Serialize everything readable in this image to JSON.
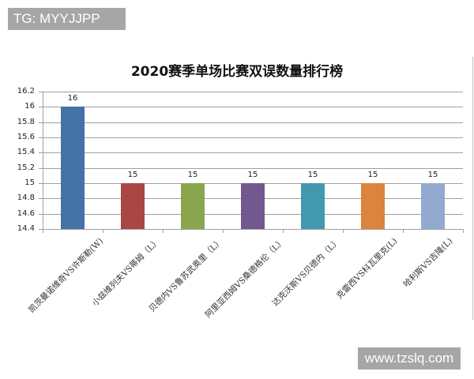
{
  "watermarks": {
    "top": "TG: MYYJJPP",
    "bottom": "www.tzslq.com"
  },
  "chart_data": {
    "type": "bar",
    "title": "2020赛季单场比赛双误数量排行榜",
    "xlabel": "",
    "ylabel": "",
    "ylim": [
      14.4,
      16.2
    ],
    "yticks": [
      "16.2",
      "16",
      "15.8",
      "15.6",
      "15.4",
      "15.2",
      "15",
      "14.8",
      "14.6",
      "14.4"
    ],
    "grid": true,
    "legend": null,
    "categories": [
      "凯茨曼诺维奇VS许斯勒(W)",
      "小兹维列夫VS蒂姆（L）",
      "贝德内VS鲁苏武奥里（L）",
      "阿里亚西姆VS桑德格伦（L）",
      "达克沃斯VS贝德内（L）",
      "克雷西VS科瓦里克(L)",
      "哈利斯VS吉隆(L)"
    ],
    "values": [
      16,
      15,
      15,
      15,
      15,
      15,
      15
    ],
    "data_labels": [
      "16",
      "15",
      "15",
      "15",
      "15",
      "15",
      "15"
    ],
    "colors": [
      "#4572a7",
      "#aa4643",
      "#89a54e",
      "#71588f",
      "#4198af",
      "#db843d",
      "#93a9cf"
    ]
  }
}
